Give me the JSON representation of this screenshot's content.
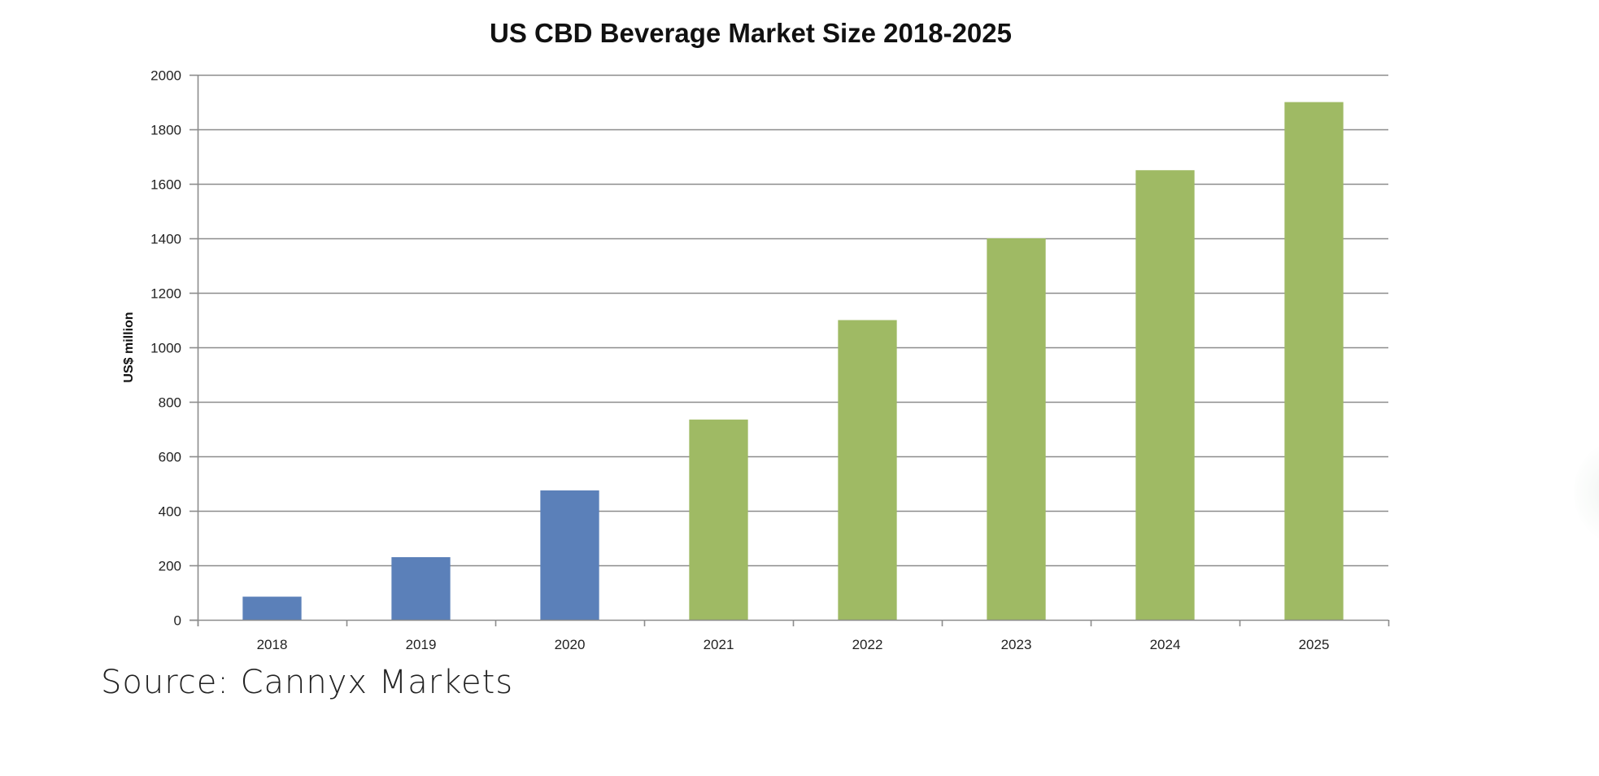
{
  "chart_data": {
    "type": "bar",
    "title": "US CBD Beverage Market Size 2018-2025",
    "xlabel": "",
    "ylabel": "US$ million",
    "categories": [
      "2018",
      "2019",
      "2020",
      "2021",
      "2022",
      "2023",
      "2024",
      "2025"
    ],
    "values": [
      85,
      230,
      475,
      735,
      1100,
      1400,
      1650,
      1900
    ],
    "bar_kind": [
      "actual",
      "actual",
      "actual",
      "forecast",
      "forecast",
      "forecast",
      "forecast",
      "forecast"
    ],
    "colors": {
      "actual": "#5b80b9",
      "forecast": "#9fba64"
    },
    "ylim": [
      0,
      2000
    ],
    "yticks": [
      0,
      200,
      400,
      600,
      800,
      1000,
      1200,
      1400,
      1600,
      1800,
      2000
    ],
    "grid": true,
    "legend": "none"
  },
  "source": "Source: Cannyx Markets"
}
